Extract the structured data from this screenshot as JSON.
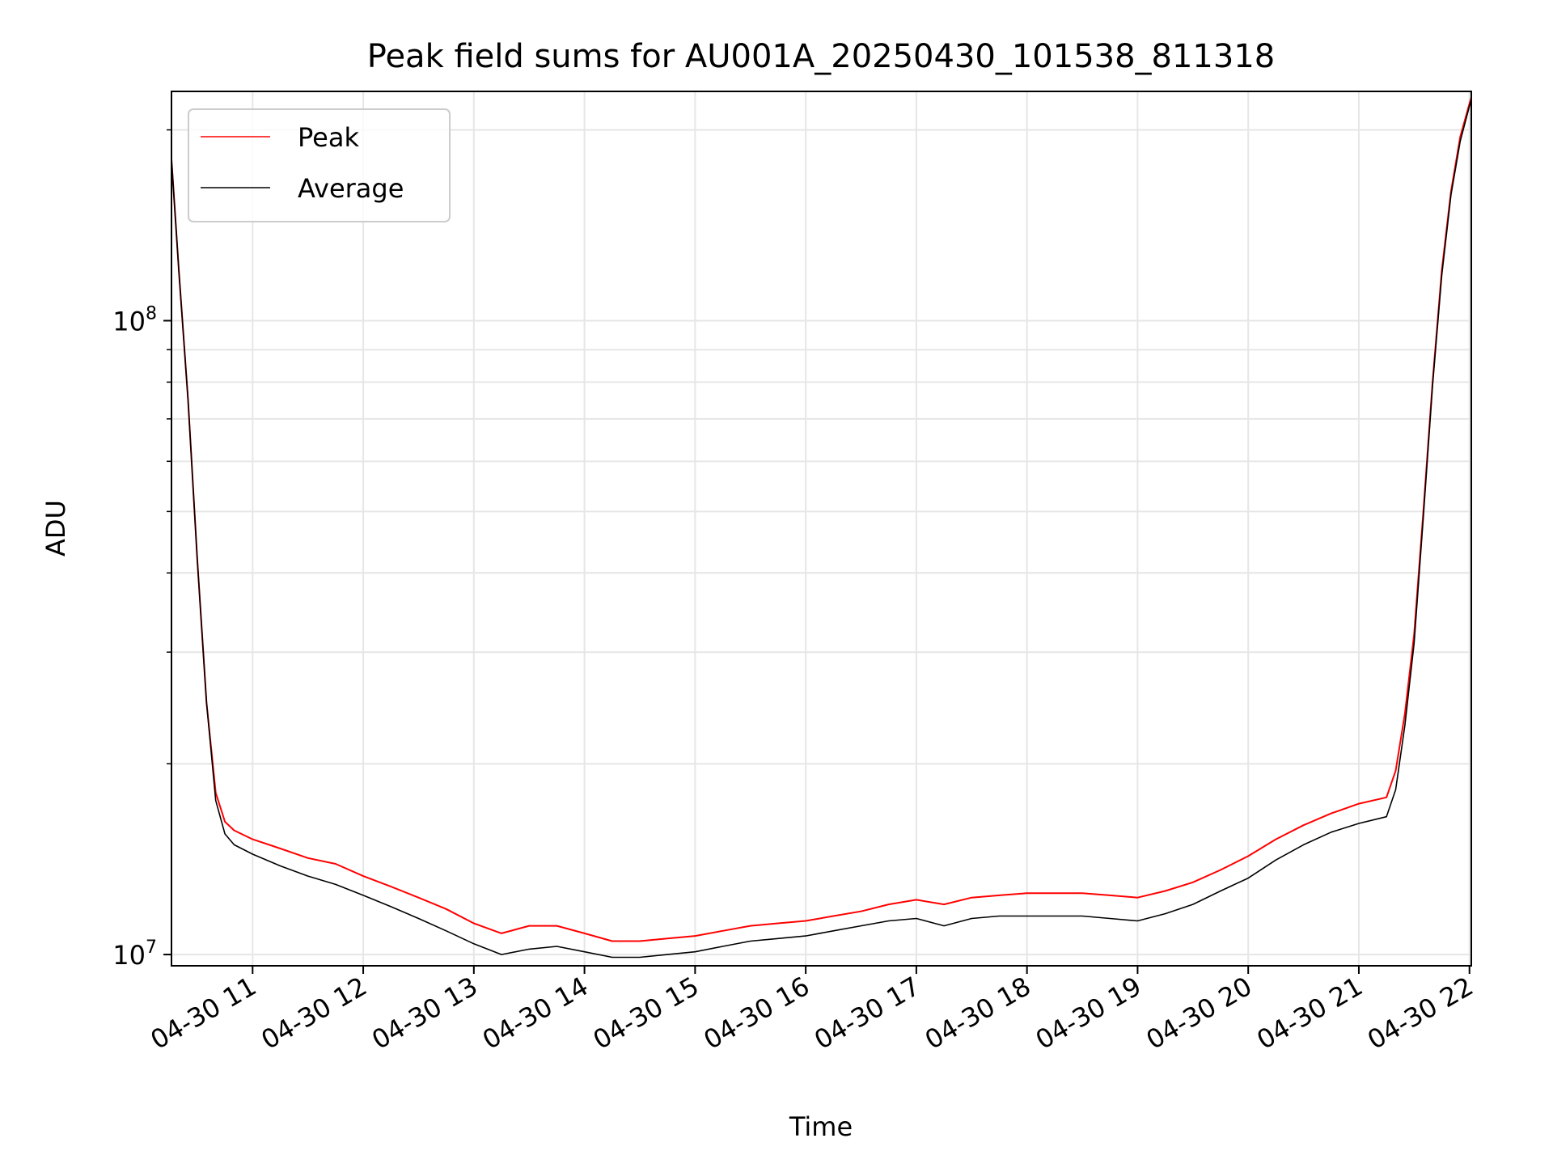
{
  "chart_data": {
    "type": "line",
    "title": "Peak field sums for AU001A_20250430_101538_811318",
    "xlabel": "Time",
    "ylabel": "ADU",
    "y_scale": "log",
    "ylim": [
      9600000,
      230000000
    ],
    "xlim": [
      "2025-04-30 10:16",
      "2025-04-30 22:01"
    ],
    "x_ticks": [
      "2025-04-30 11:00",
      "2025-04-30 12:00",
      "2025-04-30 13:00",
      "2025-04-30 14:00",
      "2025-04-30 15:00",
      "2025-04-30 16:00",
      "2025-04-30 17:00",
      "2025-04-30 18:00",
      "2025-04-30 19:00",
      "2025-04-30 20:00",
      "2025-04-30 21:00",
      "2025-04-30 22:00"
    ],
    "x_tick_labels": [
      "04-30 11",
      "04-30 12",
      "04-30 13",
      "04-30 14",
      "04-30 15",
      "04-30 16",
      "04-30 17",
      "04-30 18",
      "04-30 19",
      "04-30 20",
      "04-30 21",
      "04-30 22"
    ],
    "y_major_ticks": [
      10000000,
      100000000
    ],
    "y_tick_labels": [
      {
        "base": "10",
        "exp": "7"
      },
      {
        "base": "10",
        "exp": "8"
      }
    ],
    "y_minor_ticks": [
      20000000,
      30000000,
      40000000,
      50000000,
      60000000,
      70000000,
      80000000,
      90000000,
      200000000
    ],
    "grid": true,
    "legend_position": "top-left",
    "series": [
      {
        "name": "Peak",
        "color": "#ff0000",
        "x": [
          "2025-04-30 10:16",
          "2025-04-30 10:20",
          "2025-04-30 10:25",
          "2025-04-30 10:30",
          "2025-04-30 10:35",
          "2025-04-30 10:40",
          "2025-04-30 10:45",
          "2025-04-30 10:50",
          "2025-04-30 11:00",
          "2025-04-30 11:15",
          "2025-04-30 11:30",
          "2025-04-30 11:45",
          "2025-04-30 12:00",
          "2025-04-30 12:15",
          "2025-04-30 12:30",
          "2025-04-30 12:45",
          "2025-04-30 13:00",
          "2025-04-30 13:15",
          "2025-04-30 13:30",
          "2025-04-30 13:45",
          "2025-04-30 14:00",
          "2025-04-30 14:15",
          "2025-04-30 14:30",
          "2025-04-30 14:45",
          "2025-04-30 15:00",
          "2025-04-30 15:15",
          "2025-04-30 15:30",
          "2025-04-30 15:45",
          "2025-04-30 16:00",
          "2025-04-30 16:15",
          "2025-04-30 16:30",
          "2025-04-30 16:45",
          "2025-04-30 17:00",
          "2025-04-30 17:15",
          "2025-04-30 17:30",
          "2025-04-30 17:45",
          "2025-04-30 18:00",
          "2025-04-30 18:15",
          "2025-04-30 18:30",
          "2025-04-30 18:45",
          "2025-04-30 19:00",
          "2025-04-30 19:15",
          "2025-04-30 19:30",
          "2025-04-30 19:45",
          "2025-04-30 20:00",
          "2025-04-30 20:15",
          "2025-04-30 20:30",
          "2025-04-30 20:45",
          "2025-04-30 21:00",
          "2025-04-30 21:15",
          "2025-04-30 21:20",
          "2025-04-30 21:25",
          "2025-04-30 21:30",
          "2025-04-30 21:35",
          "2025-04-30 21:40",
          "2025-04-30 21:45",
          "2025-04-30 21:50",
          "2025-04-30 21:55",
          "2025-04-30 22:00",
          "2025-04-30 22:01"
        ],
        "values": [
          180000000,
          120000000,
          75000000,
          42000000,
          25000000,
          18000000,
          16200000,
          15700000,
          15200000,
          14700000,
          14200000,
          13900000,
          13300000,
          12800000,
          12300000,
          11800000,
          11200000,
          10800000,
          11100000,
          11100000,
          10800000,
          10500000,
          10500000,
          10600000,
          10700000,
          10900000,
          11100000,
          11200000,
          11300000,
          11500000,
          11700000,
          12000000,
          12200000,
          12000000,
          12300000,
          12400000,
          12500000,
          12500000,
          12500000,
          12400000,
          12300000,
          12600000,
          13000000,
          13600000,
          14300000,
          15200000,
          16000000,
          16700000,
          17300000,
          17700000,
          19500000,
          24000000,
          32000000,
          50000000,
          80000000,
          120000000,
          160000000,
          195000000,
          220000000,
          225000000
        ]
      },
      {
        "name": "Average",
        "color": "#000000",
        "x": [
          "2025-04-30 10:16",
          "2025-04-30 10:20",
          "2025-04-30 10:25",
          "2025-04-30 10:30",
          "2025-04-30 10:35",
          "2025-04-30 10:40",
          "2025-04-30 10:45",
          "2025-04-30 10:50",
          "2025-04-30 11:00",
          "2025-04-30 11:15",
          "2025-04-30 11:30",
          "2025-04-30 11:45",
          "2025-04-30 12:00",
          "2025-04-30 12:15",
          "2025-04-30 12:30",
          "2025-04-30 12:45",
          "2025-04-30 13:00",
          "2025-04-30 13:15",
          "2025-04-30 13:30",
          "2025-04-30 13:45",
          "2025-04-30 14:00",
          "2025-04-30 14:15",
          "2025-04-30 14:30",
          "2025-04-30 14:45",
          "2025-04-30 15:00",
          "2025-04-30 15:15",
          "2025-04-30 15:30",
          "2025-04-30 15:45",
          "2025-04-30 16:00",
          "2025-04-30 16:15",
          "2025-04-30 16:30",
          "2025-04-30 16:45",
          "2025-04-30 17:00",
          "2025-04-30 17:15",
          "2025-04-30 17:30",
          "2025-04-30 17:45",
          "2025-04-30 18:00",
          "2025-04-30 18:15",
          "2025-04-30 18:30",
          "2025-04-30 18:45",
          "2025-04-30 19:00",
          "2025-04-30 19:15",
          "2025-04-30 19:30",
          "2025-04-30 19:45",
          "2025-04-30 20:00",
          "2025-04-30 20:15",
          "2025-04-30 20:30",
          "2025-04-30 20:45",
          "2025-04-30 21:00",
          "2025-04-30 21:15",
          "2025-04-30 21:20",
          "2025-04-30 21:25",
          "2025-04-30 21:30",
          "2025-04-30 21:35",
          "2025-04-30 21:40",
          "2025-04-30 21:45",
          "2025-04-30 21:50",
          "2025-04-30 21:55",
          "2025-04-30 22:00",
          "2025-04-30 22:01"
        ],
        "values": [
          180000000,
          120000000,
          75000000,
          42000000,
          25000000,
          17500000,
          15500000,
          14900000,
          14400000,
          13800000,
          13300000,
          12900000,
          12400000,
          11900000,
          11400000,
          10900000,
          10400000,
          10000000,
          10200000,
          10300000,
          10100000,
          9900000,
          9900000,
          10000000,
          10100000,
          10300000,
          10500000,
          10600000,
          10700000,
          10900000,
          11100000,
          11300000,
          11400000,
          11100000,
          11400000,
          11500000,
          11500000,
          11500000,
          11500000,
          11400000,
          11300000,
          11600000,
          12000000,
          12600000,
          13200000,
          14100000,
          14900000,
          15600000,
          16100000,
          16500000,
          18200000,
          23000000,
          31000000,
          49000000,
          79000000,
          118000000,
          158000000,
          192000000,
          218000000,
          223000000
        ]
      }
    ]
  }
}
